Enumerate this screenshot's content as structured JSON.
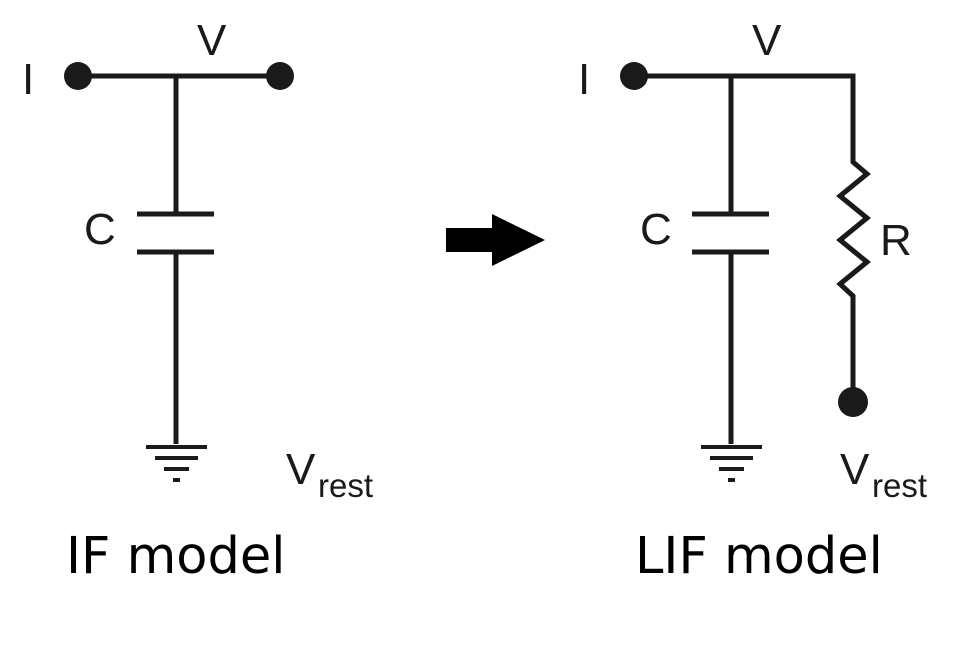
{
  "if_model": {
    "caption": "IF model",
    "label_current": "I",
    "label_voltage": "V",
    "label_capacitor": "C",
    "label_vrest_main": "V",
    "label_vrest_sub": "rest"
  },
  "lif_model": {
    "caption": "LIF model",
    "label_current": "I",
    "label_voltage": "V",
    "label_capacitor": "C",
    "label_resistor": "R",
    "label_vrest_main": "V",
    "label_vrest_sub": "rest"
  },
  "colors": {
    "ink": "#1a1a1a",
    "arrow": "#000000",
    "background": "#ffffff"
  },
  "icons": {
    "arrow": "right-arrow-icon",
    "ground": "ground-icon"
  }
}
